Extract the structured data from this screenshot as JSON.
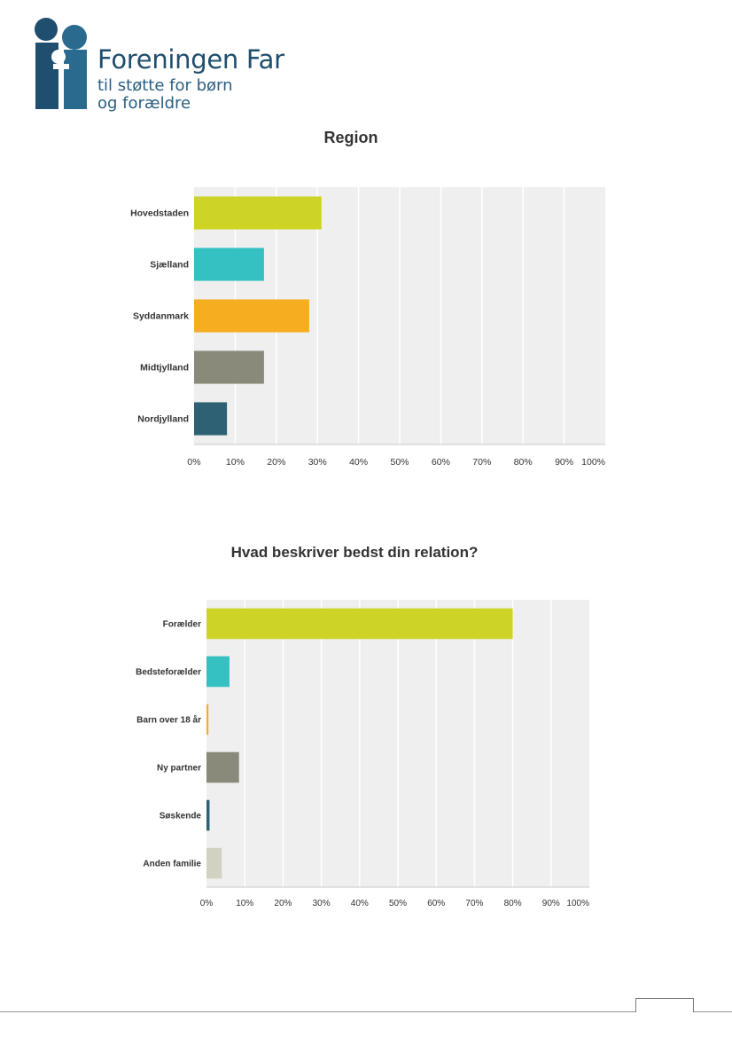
{
  "logo": {
    "name": "Foreningen Far",
    "tagline_line1": "til støtte for børn",
    "tagline_line2": "og forældre",
    "color": "#1f4e6e"
  },
  "chart_data": [
    {
      "type": "bar",
      "orientation": "horizontal",
      "title": "Region",
      "categories": [
        "Hovedstaden",
        "Sjælland",
        "Syddanmark",
        "Midtjylland",
        "Nordjylland"
      ],
      "values": [
        31,
        17,
        28,
        17,
        8
      ],
      "colors": [
        "#cdd426",
        "#35c0c2",
        "#f6ae20",
        "#8a8a7a",
        "#2e6173"
      ],
      "x_ticks": [
        "0%",
        "10%",
        "20%",
        "30%",
        "40%",
        "50%",
        "60%",
        "70%",
        "80%",
        "90%",
        "100%"
      ],
      "xlim": [
        0,
        100
      ],
      "unit": "%",
      "grid": true
    },
    {
      "type": "bar",
      "orientation": "horizontal",
      "title": "Hvad beskriver bedst din relation?",
      "categories": [
        "Forælder",
        "Bedsteforælder",
        "Barn over 18 år",
        "Ny partner",
        "Søskende",
        "Anden familie"
      ],
      "values": [
        80,
        6,
        0.5,
        8.5,
        0.8,
        4
      ],
      "colors": [
        "#cdd426",
        "#35c0c2",
        "#f6ae20",
        "#8a8a7a",
        "#2e6173",
        "#d2d2c2"
      ],
      "x_ticks": [
        "0%",
        "10%",
        "20%",
        "30%",
        "40%",
        "50%",
        "60%",
        "70%",
        "80%",
        "90%",
        "100%"
      ],
      "xlim": [
        0,
        100
      ],
      "unit": "%",
      "grid": true
    }
  ]
}
